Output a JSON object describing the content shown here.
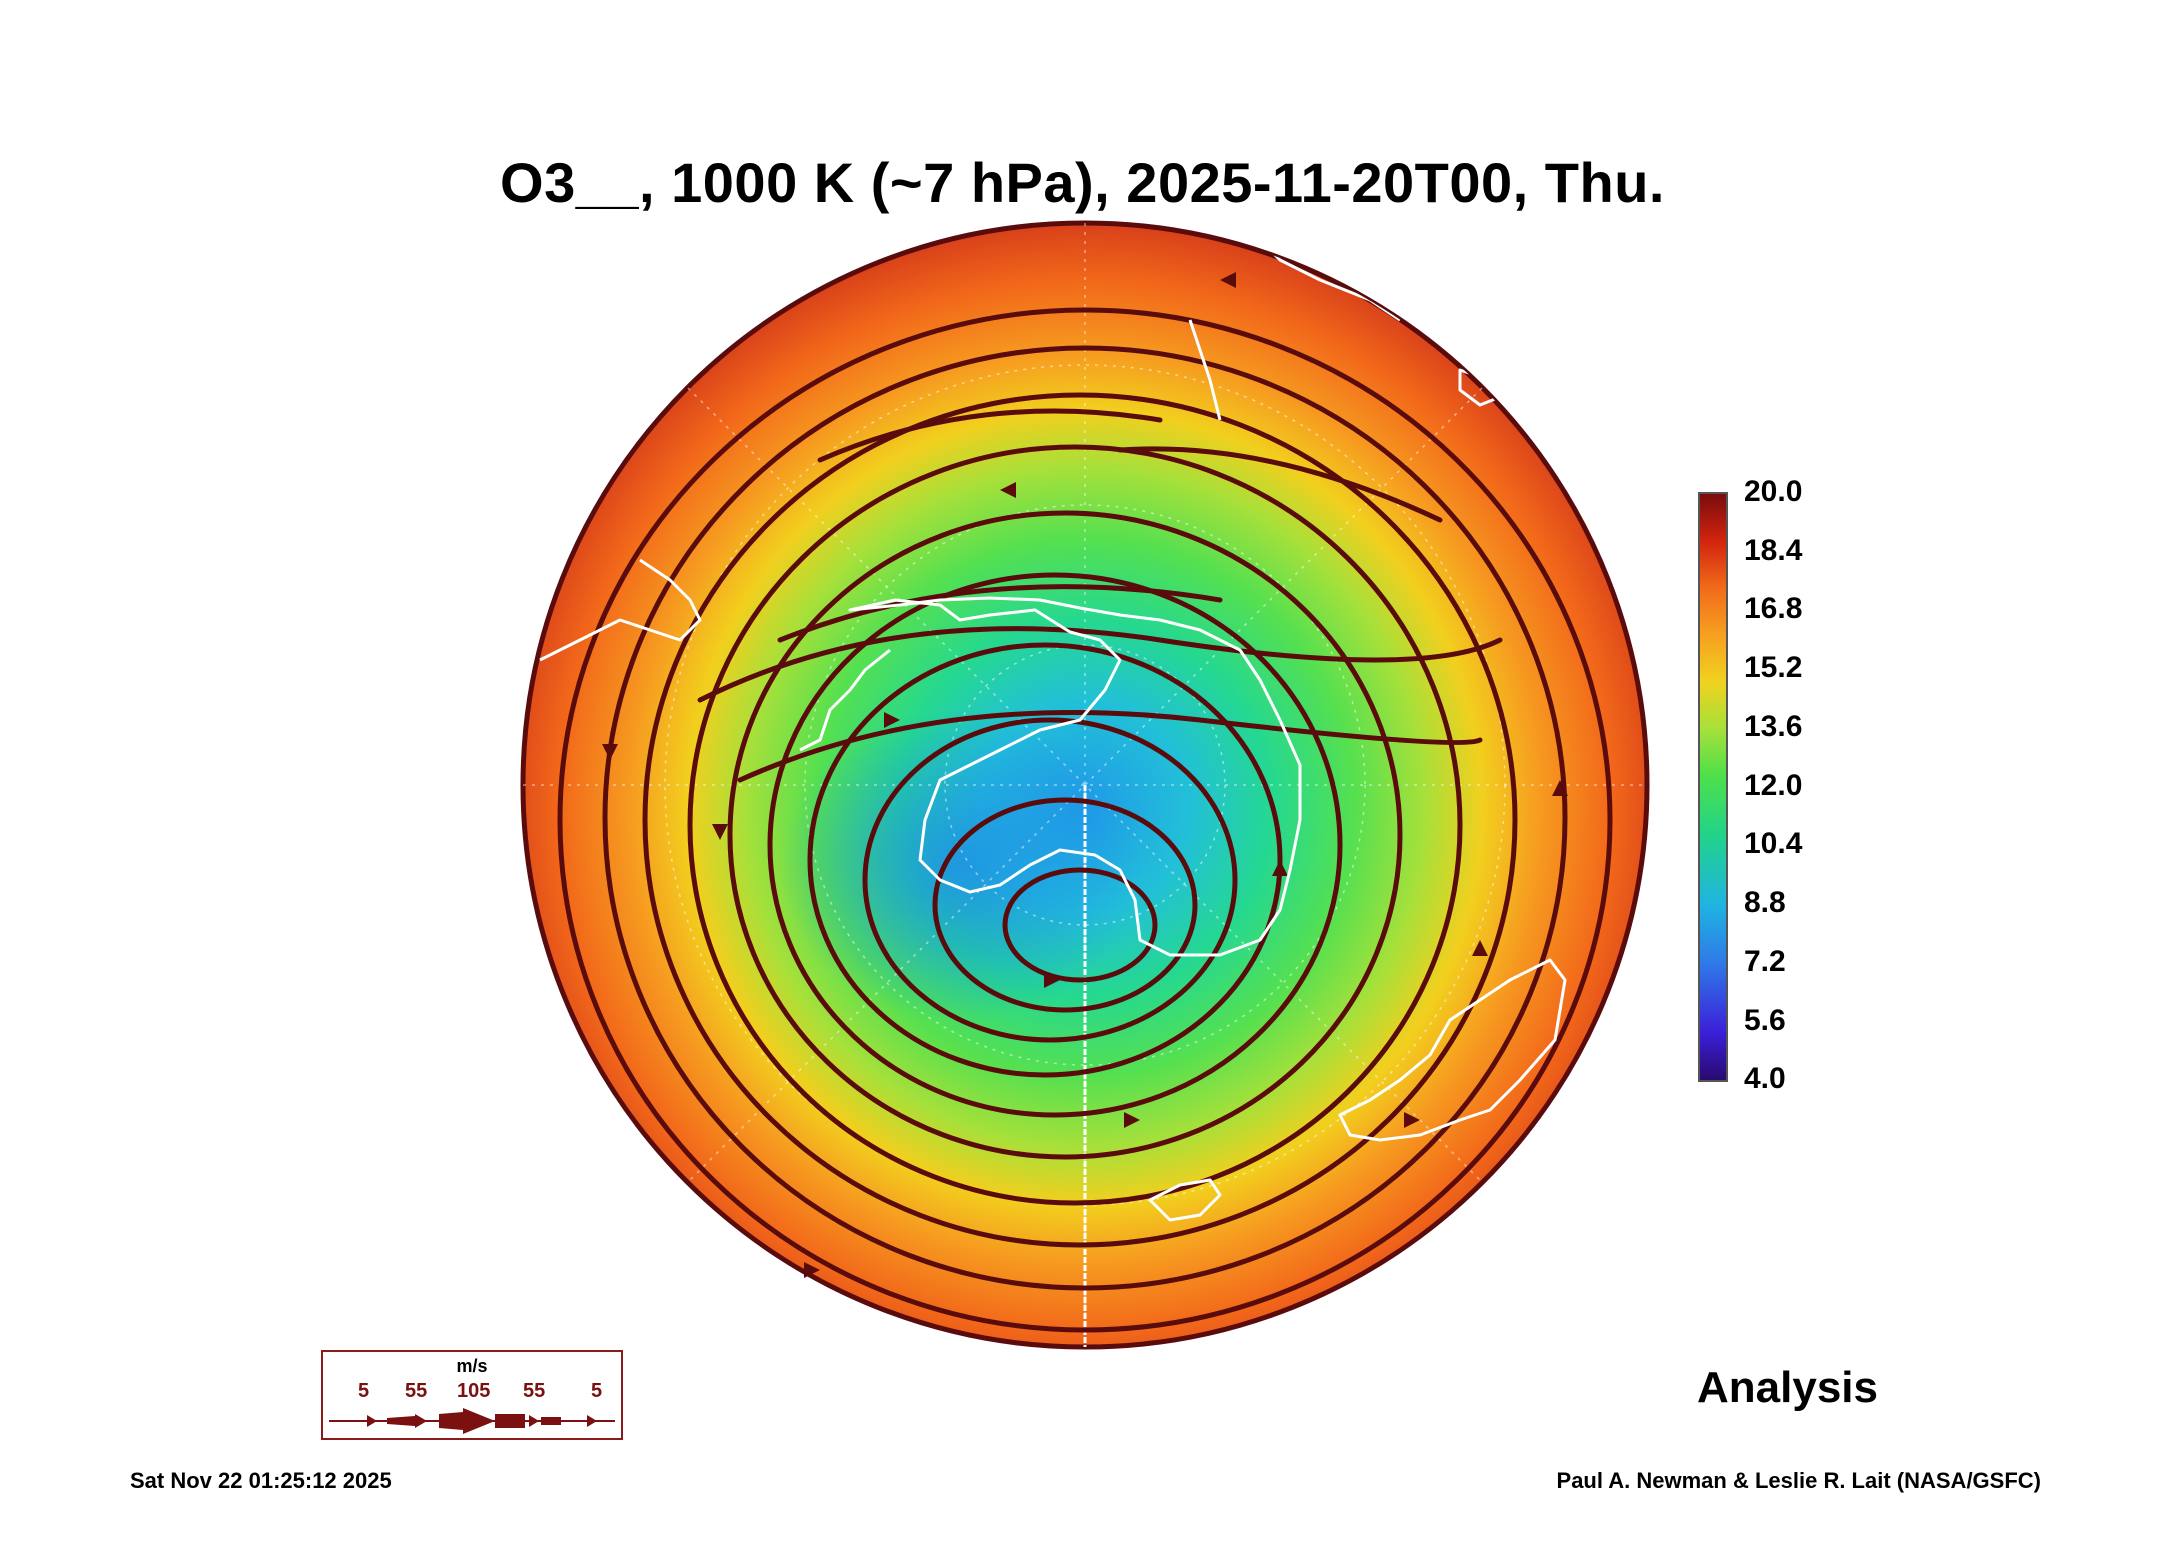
{
  "title": "O3__, 1000 K (~7 hPa), 2025-11-20T00, Thu.",
  "colorbar": {
    "ticks": [
      "20.0",
      "18.4",
      "16.8",
      "15.2",
      "13.6",
      "12.0",
      "10.4",
      "8.8",
      "7.2",
      "5.6",
      "4.0"
    ]
  },
  "analysis_label": "Analysis",
  "wind_legend": {
    "unit": "m/s",
    "labels": [
      "5",
      "55",
      "105",
      "55",
      "5"
    ]
  },
  "footer": {
    "timestamp": "Sat Nov 22 01:25:12 2025",
    "credit": "Paul A. Newman & Leslie R. Lait (NASA/GSFC)"
  },
  "colors": {
    "streamline": "#5a0c0c",
    "coastline": "#ffffff",
    "vortex_core": "#22a8e8",
    "collar": "#f46a1a"
  }
}
